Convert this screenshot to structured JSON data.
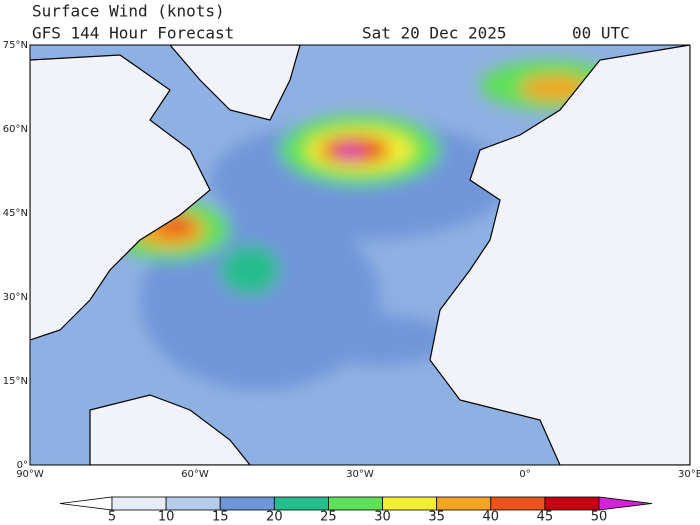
{
  "header": {
    "title": "Surface Wind (knots)",
    "subtitle": "GFS 144 Hour Forecast",
    "date": "Sat 20 Dec 2025",
    "time": "00 UTC"
  },
  "map": {
    "lat_labels": [
      "75°N",
      "60°N",
      "45°N",
      "30°N",
      "15°N",
      "0°"
    ],
    "lon_labels": [
      "90°W",
      "60°W",
      "30°W",
      "0°",
      "30°E"
    ]
  },
  "colorbar": {
    "ticks": [
      5,
      10,
      15,
      20,
      25,
      30,
      35,
      40,
      45,
      50
    ],
    "colors": [
      "#ffffff",
      "#e6edf8",
      "#b7cbea",
      "#6f96d8",
      "#25bd8c",
      "#5fe05a",
      "#f2ef32",
      "#f3a424",
      "#e9541f",
      "#c40012",
      "#d524d5"
    ]
  }
}
